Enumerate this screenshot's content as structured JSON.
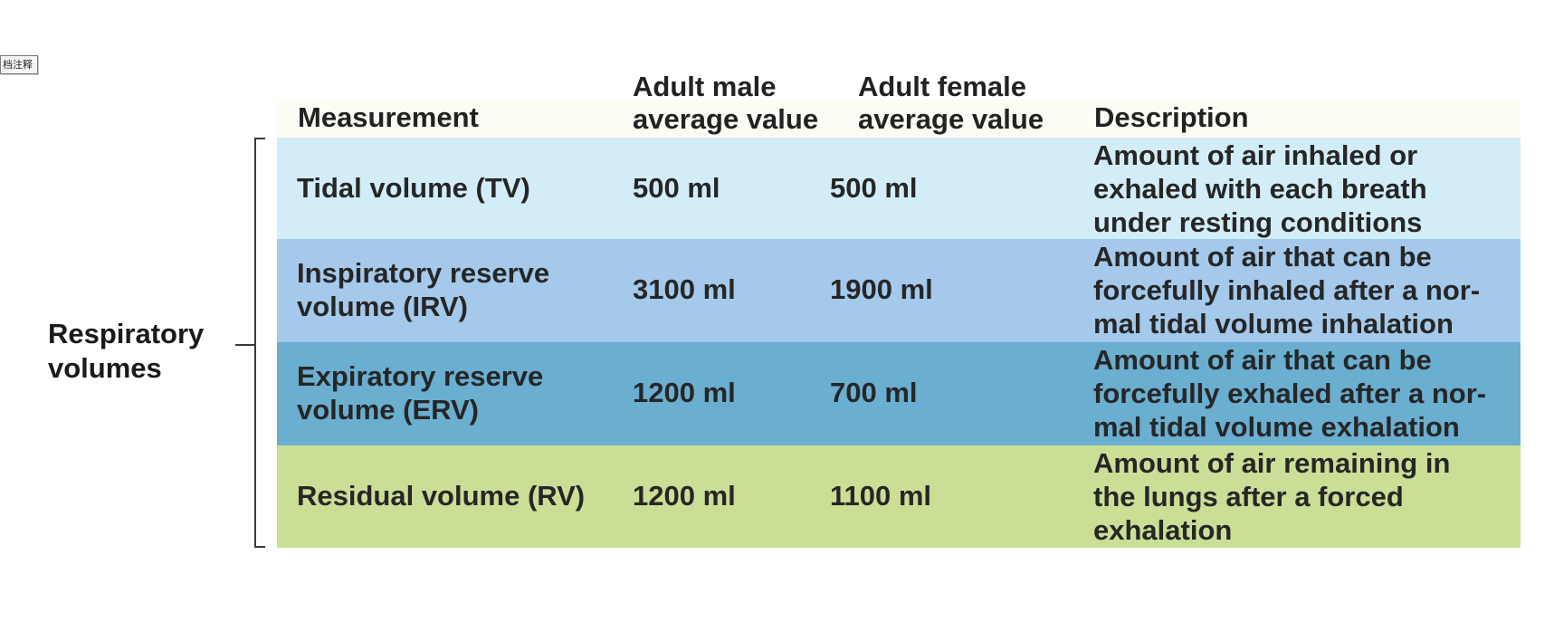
{
  "annotation_tag": "档注释",
  "group_label": {
    "line1": "Respiratory",
    "line2": "volumes"
  },
  "table": {
    "headers": {
      "measurement": "Measurement",
      "male_line1": "Adult male",
      "male_line2": "average value",
      "female_line1": "Adult female",
      "female_line2": "average value",
      "description": "Description"
    },
    "rows": [
      {
        "measurement_line1": "Tidal volume (TV)",
        "measurement_line2": "",
        "male": "500 ml",
        "female": "500 ml",
        "description": [
          "Amount of air inhaled or",
          "exhaled with each breath",
          "under resting conditions"
        ]
      },
      {
        "measurement_line1": "Inspiratory reserve",
        "measurement_line2": "volume (IRV)",
        "male": "3100 ml",
        "female": "1900 ml",
        "description": [
          "Amount of air that can be",
          "forcefully inhaled after a nor-",
          "mal tidal volume inhalation"
        ]
      },
      {
        "measurement_line1": "Expiratory reserve",
        "measurement_line2": "volume (ERV)",
        "male": "1200 ml",
        "female": "700 ml",
        "description": [
          "Amount of air that can be",
          "forcefully exhaled after a nor-",
          "mal tidal volume exhalation"
        ]
      },
      {
        "measurement_line1": "Residual volume (RV)",
        "measurement_line2": "",
        "male": "1200 ml",
        "female": "1100 ml",
        "description": [
          "Amount of air remaining in",
          "the lungs after a forced",
          "exhalation"
        ]
      }
    ]
  },
  "colors": {
    "row_tv": "#d3edf8",
    "row_irv": "#a4c9ea",
    "row_erv": "#6aaed0",
    "row_rv": "#c9df96"
  }
}
